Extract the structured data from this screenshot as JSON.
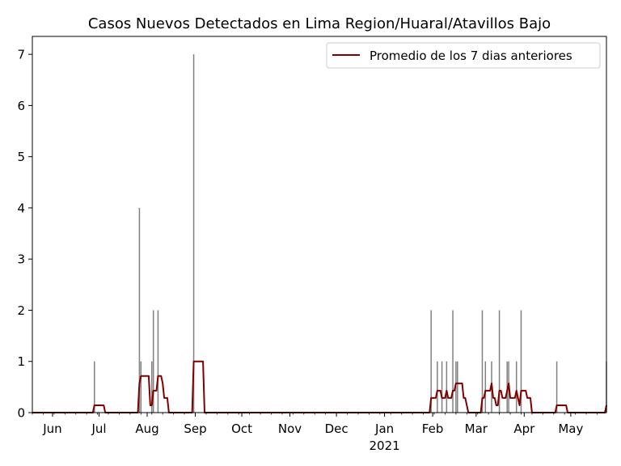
{
  "chart_data": {
    "type": "bar",
    "title": "Casos Nuevos Detectados en Lima Region/Huaral/Atavillos Bajo",
    "xlabel": "",
    "ylabel": "",
    "x_range": [
      "2020-05-19",
      "2021-05-24"
    ],
    "ylim": [
      0,
      7.35
    ],
    "y_ticks": [
      0,
      1,
      2,
      3,
      4,
      5,
      6,
      7
    ],
    "x_ticks": [
      {
        "date": "2020-06-01",
        "label": "Jun"
      },
      {
        "date": "2020-07-01",
        "label": "Jul"
      },
      {
        "date": "2020-08-01",
        "label": "Aug"
      },
      {
        "date": "2020-09-01",
        "label": "Sep"
      },
      {
        "date": "2020-10-01",
        "label": "Oct"
      },
      {
        "date": "2020-11-01",
        "label": "Nov"
      },
      {
        "date": "2020-12-01",
        "label": "Dec"
      },
      {
        "date": "2021-01-01",
        "label": "Jan",
        "sublabel": "2021"
      },
      {
        "date": "2021-02-01",
        "label": "Feb"
      },
      {
        "date": "2021-03-01",
        "label": "Mar"
      },
      {
        "date": "2021-04-01",
        "label": "Apr"
      },
      {
        "date": "2021-05-01",
        "label": "May"
      }
    ],
    "bar_color": "#808080",
    "daily_cases": [
      {
        "date": "2020-06-28",
        "value": 1
      },
      {
        "date": "2020-07-27",
        "value": 4
      },
      {
        "date": "2020-07-28",
        "value": 1
      },
      {
        "date": "2020-08-04",
        "value": 1
      },
      {
        "date": "2020-08-05",
        "value": 2
      },
      {
        "date": "2020-08-08",
        "value": 2
      },
      {
        "date": "2020-08-31",
        "value": 7
      },
      {
        "date": "2021-01-31",
        "value": 2
      },
      {
        "date": "2021-02-04",
        "value": 1
      },
      {
        "date": "2021-02-07",
        "value": 1
      },
      {
        "date": "2021-02-10",
        "value": 1
      },
      {
        "date": "2021-02-14",
        "value": 2
      },
      {
        "date": "2021-02-16",
        "value": 1
      },
      {
        "date": "2021-02-17",
        "value": 1
      },
      {
        "date": "2021-03-05",
        "value": 2
      },
      {
        "date": "2021-03-07",
        "value": 1
      },
      {
        "date": "2021-03-11",
        "value": 1
      },
      {
        "date": "2021-03-16",
        "value": 2
      },
      {
        "date": "2021-03-21",
        "value": 1
      },
      {
        "date": "2021-03-22",
        "value": 1
      },
      {
        "date": "2021-03-27",
        "value": 1
      },
      {
        "date": "2021-03-30",
        "value": 2
      },
      {
        "date": "2021-04-22",
        "value": 1
      },
      {
        "date": "2021-05-24",
        "value": 1
      }
    ],
    "series": [
      {
        "name": "Promedio de los 7 dias anteriores",
        "color": "#800000",
        "window_days": 7
      }
    ],
    "legend": {
      "position": "top-right"
    },
    "grid": false
  }
}
